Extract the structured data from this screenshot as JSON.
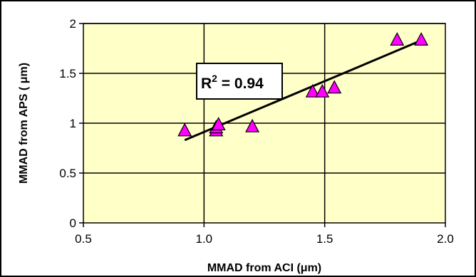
{
  "chart_data": {
    "type": "scatter",
    "title": "",
    "xlabel": "MMAD from ACI (μm)",
    "ylabel": "MMAD from APS ( μm)",
    "xlim": [
      0.5,
      2.0
    ],
    "ylim": [
      0,
      2
    ],
    "xticks": [
      "0.5",
      "1.0",
      "1.5",
      "2.0"
    ],
    "yticks": [
      "0",
      "0.5",
      "1",
      "1.5",
      "2"
    ],
    "grid": true,
    "legend": "none",
    "colors": {
      "plot_background": "#ffffc8",
      "marker_fill": "#ff00ff",
      "marker_edge": "#000000",
      "trendline": "#000000"
    },
    "series": [
      {
        "x": [
          0.92,
          1.05,
          1.05,
          1.06,
          1.2,
          1.45,
          1.49,
          1.54,
          1.8,
          1.9
        ],
        "y": [
          0.93,
          0.93,
          0.96,
          0.99,
          0.97,
          1.32,
          1.32,
          1.36,
          1.84,
          1.84
        ]
      }
    ],
    "trendline": {
      "x": [
        0.92,
        1.9
      ],
      "y": [
        0.83,
        1.83
      ]
    },
    "annotation": {
      "prefix": "R",
      "superscript": "2",
      "suffix": " = 0.94"
    }
  }
}
